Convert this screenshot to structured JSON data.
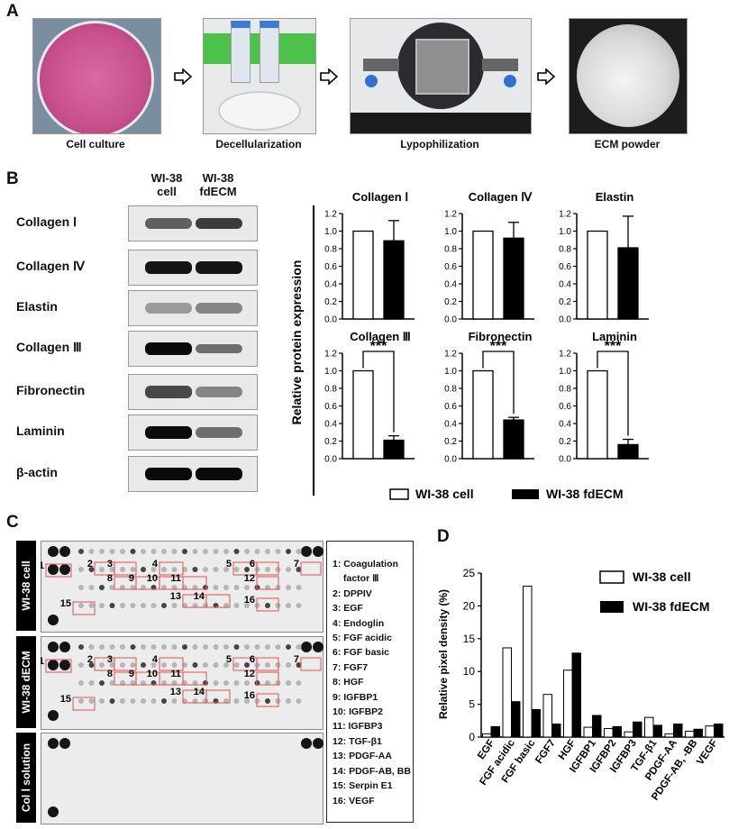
{
  "panels": {
    "a": "A",
    "b": "B",
    "c": "C",
    "d": "D"
  },
  "workflow": {
    "steps": [
      {
        "label": "Cell culture"
      },
      {
        "label": "Decellularization"
      },
      {
        "label": "Lypophilization"
      },
      {
        "label": "ECM powder"
      }
    ],
    "icons": [
      "right-arrow-icon",
      "right-arrow-icon",
      "right-arrow-icon"
    ]
  },
  "western_blot": {
    "lane_headers": [
      "WI-38\ncell",
      "WI-38\nfdECM"
    ],
    "lane_header_1a": "WI-38",
    "lane_header_1b": "cell",
    "lane_header_2a": "WI-38",
    "lane_header_2b": "fdECM",
    "proteins": [
      "Collagen Ⅰ",
      "Collagen Ⅳ",
      "Elastin",
      "Collagen Ⅲ",
      "Fibronectin",
      "Laminin",
      "β-actin"
    ]
  },
  "chart_data": [
    {
      "type": "bar",
      "title": "Collagen Ⅰ",
      "ylabel": "Relative protein expression",
      "categories": [
        "WI-38 cell",
        "WI-38 fdECM"
      ],
      "values": [
        1.0,
        0.89
      ],
      "errors": [
        0,
        0.23
      ],
      "ylim": [
        0,
        1.2
      ],
      "yticks": [
        "0.0",
        "0.2",
        "0.4",
        "0.6",
        "0.8",
        "1.0",
        "1.2"
      ],
      "significance": ""
    },
    {
      "type": "bar",
      "title": "Collagen Ⅳ",
      "categories": [
        "WI-38 cell",
        "WI-38 fdECM"
      ],
      "values": [
        1.0,
        0.92
      ],
      "errors": [
        0,
        0.18
      ],
      "ylim": [
        0,
        1.2
      ],
      "yticks": [
        "0.0",
        "0.2",
        "0.4",
        "0.6",
        "0.8",
        "1.0",
        "1.2"
      ],
      "significance": ""
    },
    {
      "type": "bar",
      "title": "Elastin",
      "categories": [
        "WI-38 cell",
        "WI-38 fdECM"
      ],
      "values": [
        1.0,
        0.81
      ],
      "errors": [
        0,
        0.36
      ],
      "ylim": [
        0,
        1.2
      ],
      "yticks": [
        "0.0",
        "0.2",
        "0.4",
        "0.6",
        "0.8",
        "1.0",
        "1.2"
      ],
      "significance": ""
    },
    {
      "type": "bar",
      "title": "Collagen Ⅲ",
      "categories": [
        "WI-38 cell",
        "WI-38 fdECM"
      ],
      "values": [
        1.0,
        0.21
      ],
      "errors": [
        0,
        0.05
      ],
      "ylim": [
        0,
        1.2
      ],
      "yticks": [
        "0.0",
        "0.2",
        "0.4",
        "0.6",
        "0.8",
        "1.0",
        "1.2"
      ],
      "significance": "***"
    },
    {
      "type": "bar",
      "title": "Fibronectin",
      "categories": [
        "WI-38 cell",
        "WI-38 fdECM"
      ],
      "values": [
        1.0,
        0.44
      ],
      "errors": [
        0,
        0.03
      ],
      "ylim": [
        0,
        1.2
      ],
      "yticks": [
        "0.0",
        "0.2",
        "0.4",
        "0.6",
        "0.8",
        "1.0",
        "1.2"
      ],
      "significance": "***"
    },
    {
      "type": "bar",
      "title": "Laminin",
      "categories": [
        "WI-38 cell",
        "WI-38 fdECM"
      ],
      "values": [
        1.0,
        0.16
      ],
      "errors": [
        0,
        0.06
      ],
      "ylim": [
        0,
        1.2
      ],
      "yticks": [
        "0.0",
        "0.2",
        "0.4",
        "0.6",
        "0.8",
        "1.0",
        "1.2"
      ],
      "significance": "***"
    },
    {
      "type": "bar",
      "ylabel": "Relative pixel density (%)",
      "categories": [
        "EGF",
        "FGF acidic",
        "FGF basic",
        "FGF7",
        "HGF",
        "IGFBP1",
        "IGFBP2",
        "IGFBP3",
        "TGF-β1",
        "PDGF-AA",
        "PDGF-AB, -BB",
        "VEGF"
      ],
      "series": [
        {
          "name": "WI-38 cell",
          "values": [
            0.5,
            13.6,
            23.0,
            6.5,
            10.2,
            1.5,
            1.3,
            0.8,
            3.0,
            0.5,
            0.9,
            1.7
          ]
        },
        {
          "name": "WI-38 fdECM",
          "values": [
            1.6,
            5.4,
            4.2,
            2.0,
            12.8,
            3.3,
            1.6,
            2.3,
            1.8,
            2.0,
            1.2,
            2.0
          ]
        }
      ],
      "ylim": [
        0,
        25
      ],
      "yticks": [
        "0",
        "5",
        "10",
        "15",
        "20",
        "25"
      ],
      "legend": "top-right"
    }
  ],
  "bar_legend": {
    "cell": "WI-38 cell",
    "fdecm": "WI-38 fdECM"
  },
  "array": {
    "tabs": [
      "WI-38 cell",
      "WI-38 dECM",
      "Col Ⅰ solution"
    ],
    "legend": [
      "1: Coagulation",
      "factor Ⅲ",
      "2: DPPIV",
      "3: EGF",
      "4: Endoglin",
      "5: FGF acidic",
      "6: FGF basic",
      "7: FGF7",
      "8: HGF",
      "9: IGFBP1",
      "10: IGFBP2",
      "11: IGFBP3",
      "12: TGF-β1",
      "13: PDGF-AA",
      "14: PDGF-AB, BB",
      "15: Serpin E1",
      "16: VEGF"
    ]
  },
  "colors": {
    "cell_bar": "#ffffff",
    "fdecm_bar": "#000000",
    "culture": "#c8508c",
    "highlight": "#e0605a"
  }
}
